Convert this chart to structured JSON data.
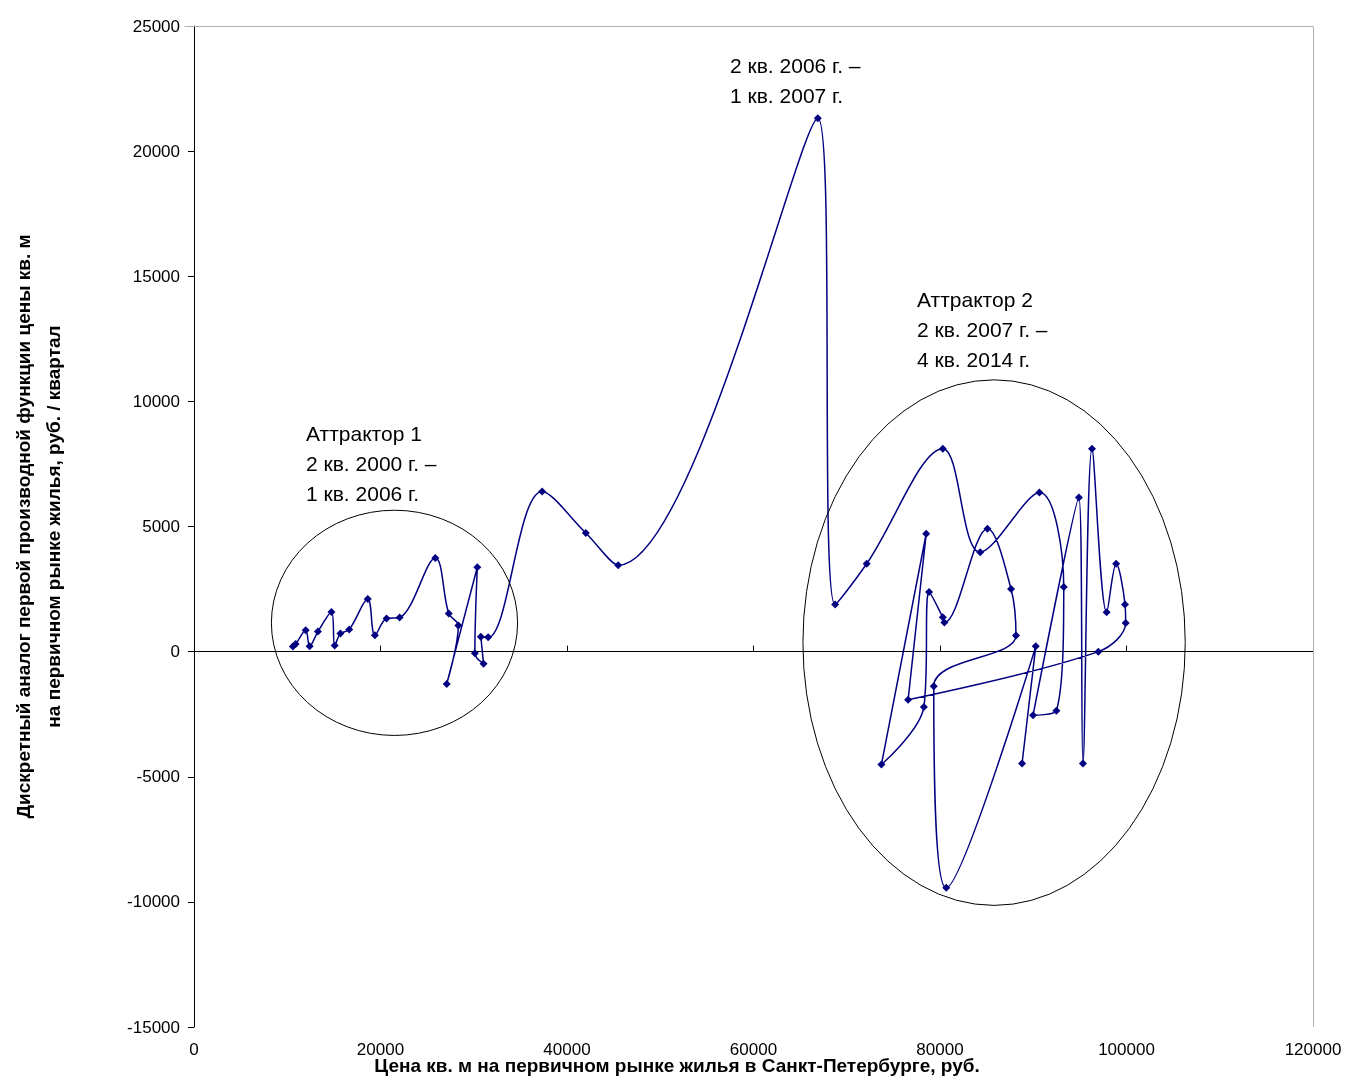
{
  "chart_data": {
    "type": "line",
    "xlabel": "Цена кв. м на первичном рынке жилья в Санкт-Петербурге, руб.",
    "ylabel": "Дискретный аналог первой производной функции цены кв. м\nна первичном рынке жилья, руб. / квартал",
    "annotations": [
      "Аттрактор 1\n2 кв. 2000 г. –\n1 кв. 2006 г.",
      "2 кв. 2006 г. –\n1 кв. 2007 г.",
      "Аттрактор 2\n2 кв. 2007 г. –\n4 кв. 2014 г."
    ],
    "series": [
      {
        "color": "#000080",
        "x": [
          10600,
          10900,
          11980,
          12400,
          13290,
          14740,
          15090,
          15700,
          16640,
          18630,
          19400,
          20650,
          22050,
          25880,
          27320,
          28350,
          27100,
          30380,
          30120,
          31050,
          30760,
          31540,
          37330,
          42020,
          45490,
          66900,
          68750,
          72140,
          80300,
          84310,
          90660,
          93270,
          92480,
          89980,
          94890,
          95330,
          96300,
          97870,
          98890,
          99840,
          99910,
          96980,
          76580,
          78520,
          73720,
          78270,
          78830,
          80300,
          80470,
          85090,
          87620,
          88150,
          79330,
          80670,
          90270,
          88800
        ],
        "values": [
          200,
          300,
          850,
          210,
          800,
          1580,
          240,
          720,
          880,
          2100,
          650,
          1320,
          1360,
          3740,
          1520,
          1040,
          -1290,
          3370,
          -60,
          -480,
          590,
          570,
          6400,
          4740,
          3450,
          21310,
          1880,
          3510,
          8110,
          3970,
          6360,
          2580,
          -2360,
          -2540,
          6160,
          -4470,
          8110,
          1570,
          3510,
          1880,
          1140,
          0,
          -1920,
          4710,
          -4510,
          -2210,
          2380,
          1370,
          1160,
          4910,
          2500,
          640,
          -1380,
          -9440,
          210,
          -4470
        ]
      }
    ],
    "xlim": [
      0,
      120000
    ],
    "xticks": [
      0,
      20000,
      40000,
      60000,
      80000,
      100000,
      120000
    ],
    "ylim": [
      -15000,
      25000
    ],
    "yticks": [
      -15000,
      -10000,
      -5000,
      0,
      5000,
      10000,
      15000,
      20000,
      25000
    ],
    "marker": "diamond",
    "line_style": "solid"
  }
}
